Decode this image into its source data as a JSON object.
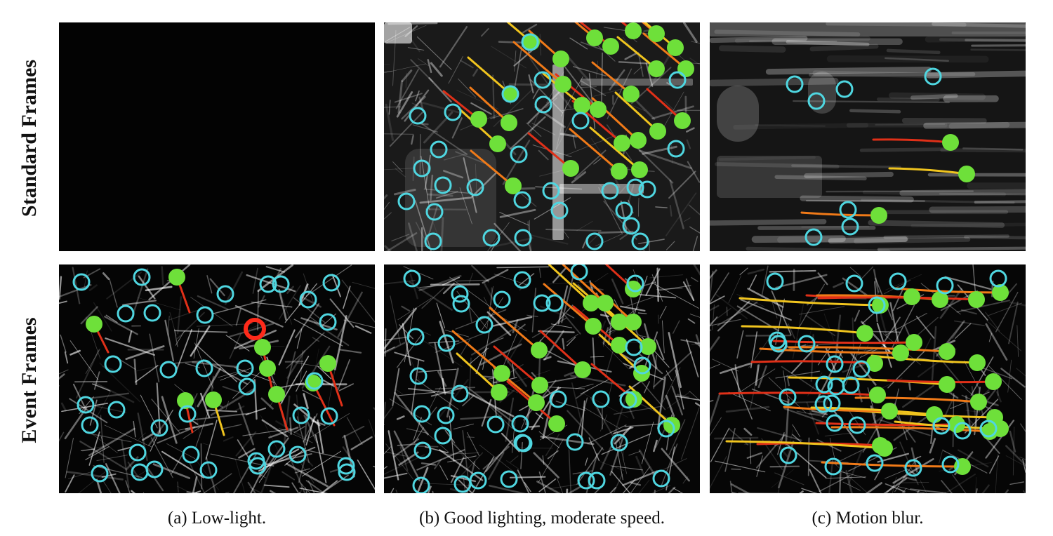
{
  "rows": [
    {
      "label": "Standard Frames"
    },
    {
      "label": "Event Frames"
    }
  ],
  "captions": [
    "(a) Low-light.",
    "(b) Good lighting, moderate speed.",
    "(c) Motion blur."
  ],
  "colors": {
    "tracked_feature": "#6ee03a",
    "detected_feature": "#4fd6e0",
    "lost_feature": "#ff2a1a",
    "track_red": "#e03018",
    "track_orange": "#f07a18",
    "track_yellow": "#f0c41e"
  }
}
